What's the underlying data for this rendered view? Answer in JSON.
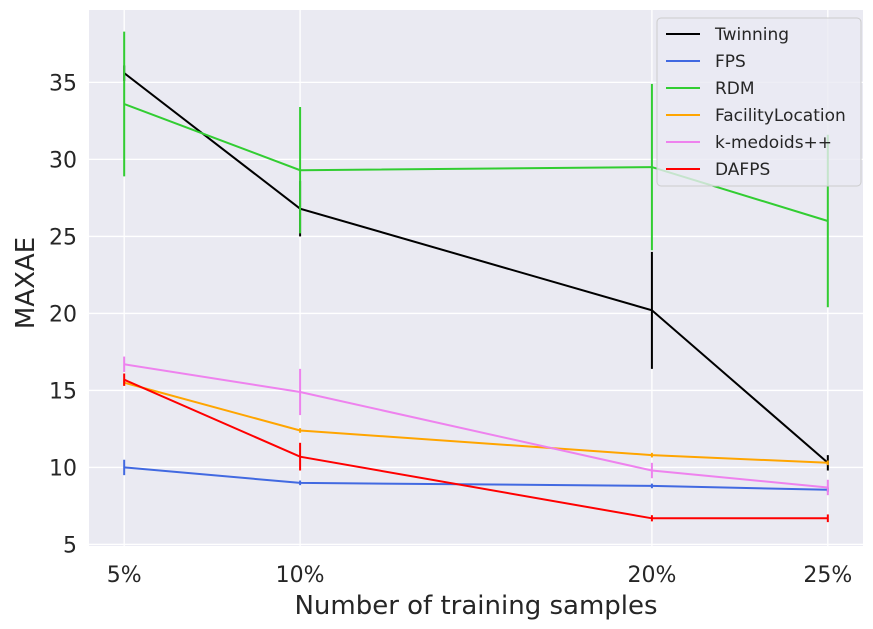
{
  "chart_data": {
    "type": "line",
    "title": "",
    "xlabel": "Number of training samples",
    "ylabel": "MAXAE",
    "x": [
      5,
      10,
      20,
      25
    ],
    "x_tick_labels": [
      "5%",
      "10%",
      "20%",
      "25%"
    ],
    "xlim": [
      4,
      26
    ],
    "ylim": [
      4.9,
      39.7
    ],
    "y_ticks": [
      5,
      10,
      15,
      20,
      25,
      30,
      35
    ],
    "y_tick_labels": [
      "5",
      "10",
      "15",
      "20",
      "25",
      "30",
      "35"
    ],
    "grid": true,
    "legend_position": "top-right",
    "series": [
      {
        "name": "Twinning",
        "color": "#000000",
        "values": [
          35.6,
          26.8,
          20.2,
          10.3
        ],
        "errors": [
          0.5,
          1.8,
          3.8,
          0.5
        ]
      },
      {
        "name": "FPS",
        "color": "#4169e1",
        "values": [
          10.0,
          9.0,
          8.8,
          8.55
        ],
        "errors": [
          0.5,
          0.15,
          0.15,
          0.15
        ]
      },
      {
        "name": "RDM",
        "color": "#32cd32",
        "values": [
          33.6,
          29.3,
          29.5,
          26.0
        ],
        "errors": [
          4.7,
          4.1,
          5.4,
          5.6
        ]
      },
      {
        "name": "FacilityLocation",
        "color": "#ffa500",
        "values": [
          15.5,
          12.4,
          10.8,
          10.3
        ],
        "errors": [
          0.2,
          0.15,
          0.15,
          0.15
        ]
      },
      {
        "name": "k-medoids++",
        "color": "#ee82ee",
        "values": [
          16.7,
          14.9,
          9.8,
          8.7
        ],
        "errors": [
          0.5,
          1.5,
          0.5,
          0.5
        ]
      },
      {
        "name": "DAFPS",
        "color": "#ff0000",
        "values": [
          15.7,
          10.7,
          6.7,
          6.7
        ],
        "errors": [
          0.4,
          0.9,
          0.2,
          0.25
        ]
      }
    ]
  }
}
